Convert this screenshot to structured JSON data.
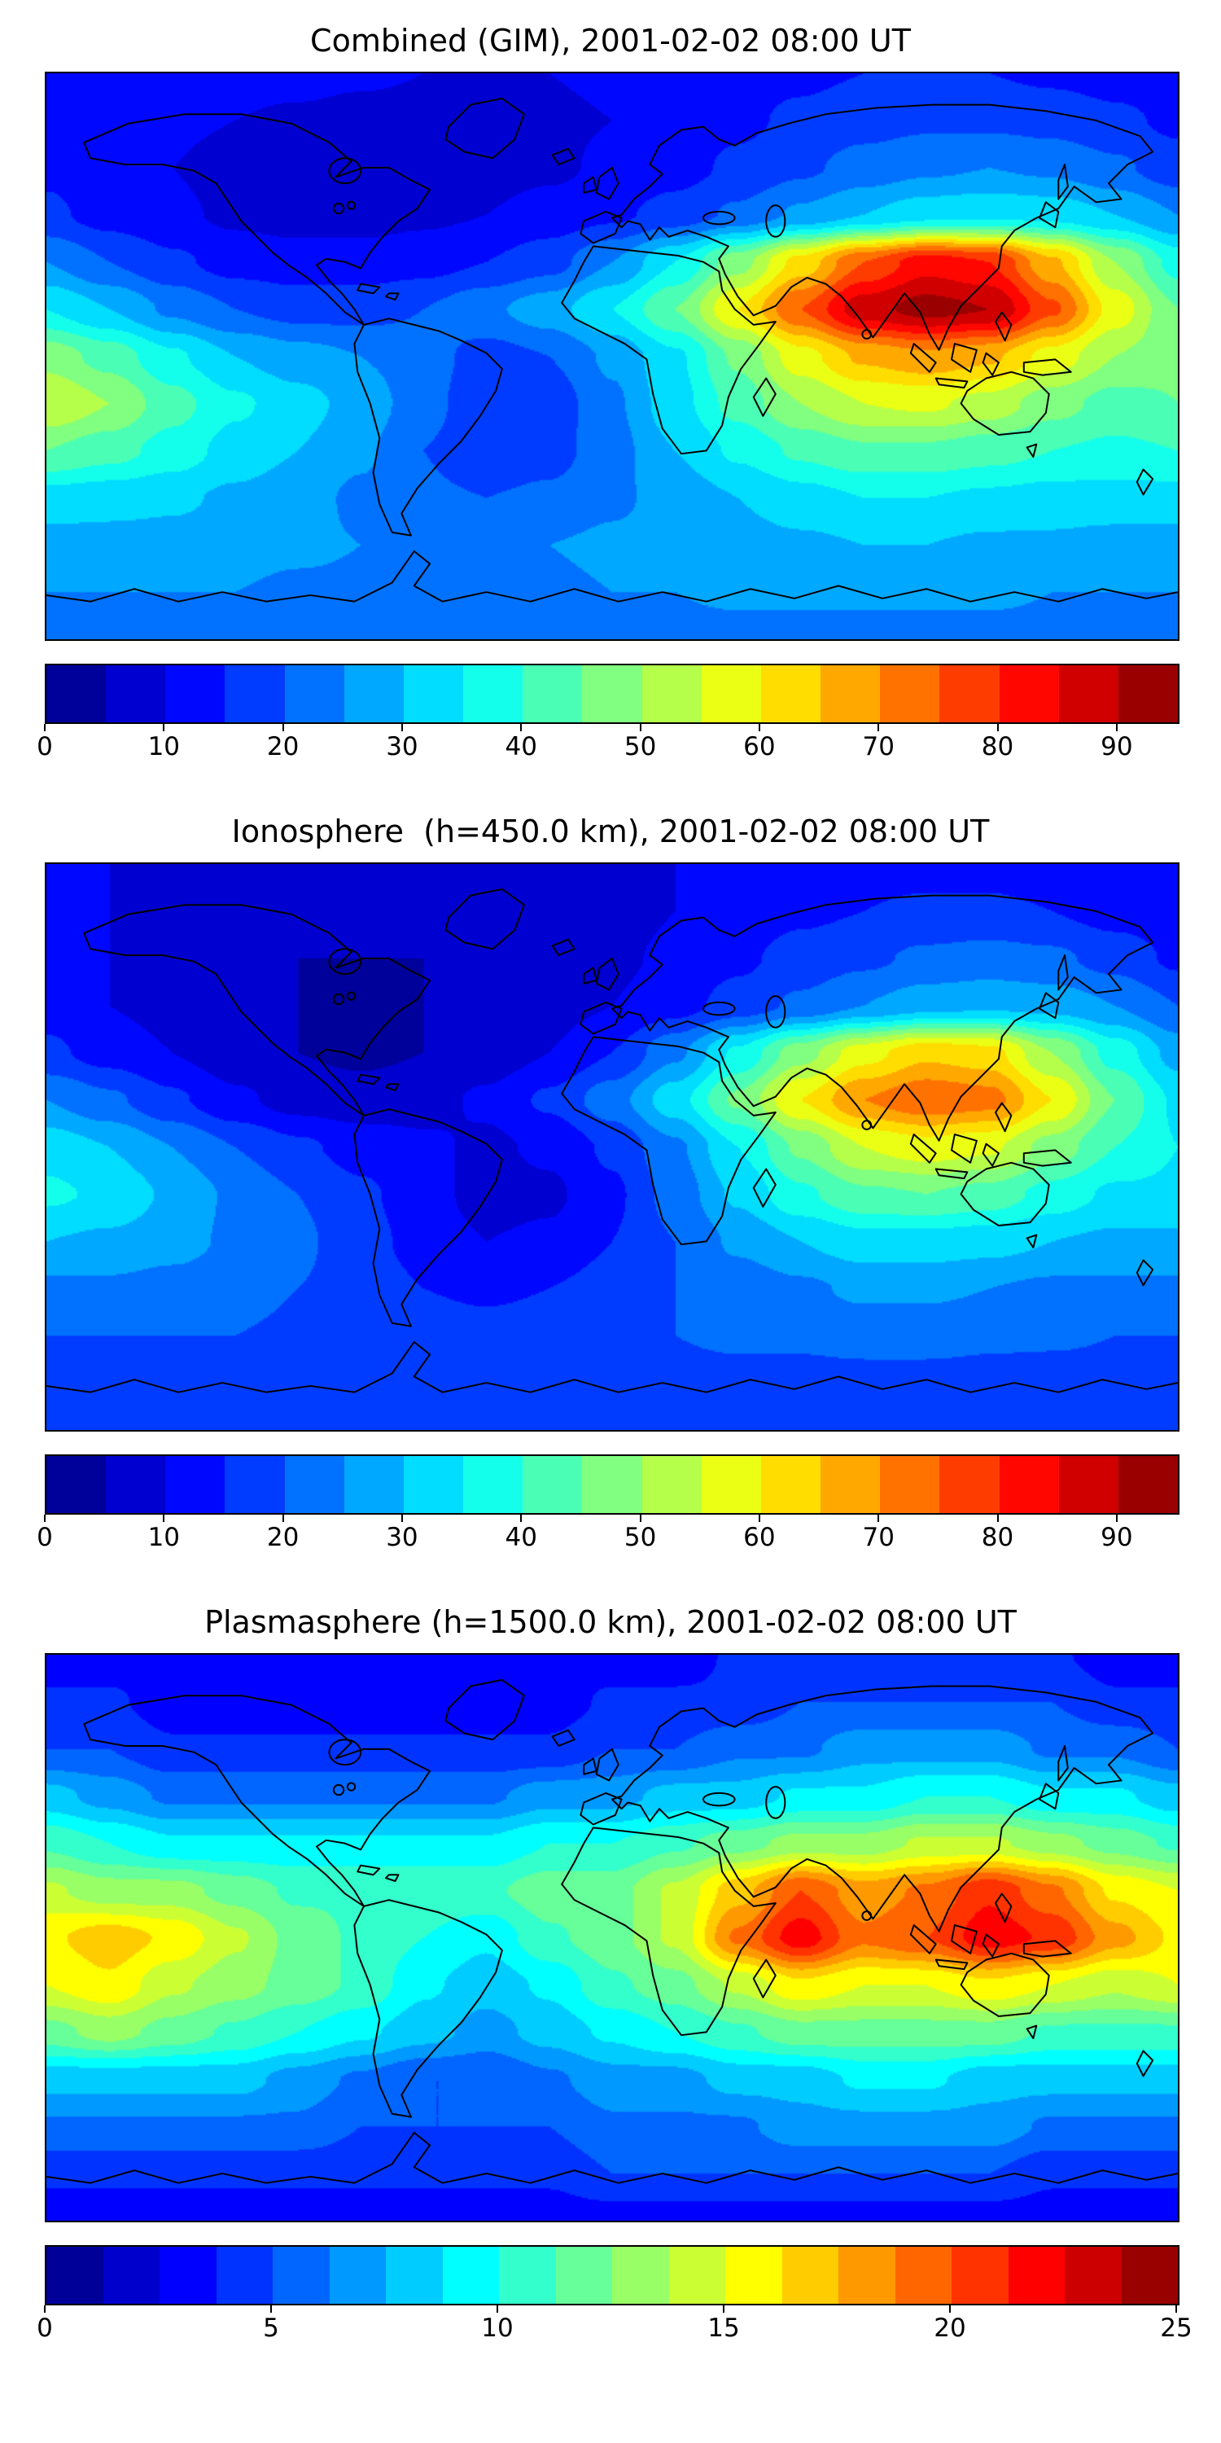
{
  "figure": {
    "background": "#ffffff",
    "colormap": "jet",
    "colormap_stops": [
      [
        0.0,
        "#00007f"
      ],
      [
        0.125,
        "#0000ff"
      ],
      [
        0.375,
        "#00ffff"
      ],
      [
        0.625,
        "#ffff00"
      ],
      [
        0.875,
        "#ff0000"
      ],
      [
        1.0,
        "#7f0000"
      ]
    ]
  },
  "chart_data": [
    {
      "type": "heatmap",
      "title": "Combined (GIM), 2001-02-02 08:00 UT",
      "xlabel": "",
      "ylabel": "",
      "projection": "equirectangular",
      "vmin": 0,
      "vmax": 95,
      "levels": 19,
      "colorbar_ticks": [
        0,
        10,
        20,
        30,
        40,
        50,
        60,
        70,
        80,
        90
      ],
      "lon": [
        -180,
        -160,
        -140,
        -120,
        -100,
        -80,
        -60,
        -40,
        -20,
        0,
        20,
        40,
        60,
        80,
        100,
        120,
        140,
        160,
        180
      ],
      "lat": [
        90,
        75,
        60,
        45,
        30,
        15,
        0,
        -15,
        -30,
        -45,
        -60,
        -75,
        -90
      ],
      "values": [
        [
          12,
          12,
          12,
          12,
          12,
          11,
          10,
          10,
          10,
          11,
          12,
          13,
          14,
          15,
          15,
          15,
          14,
          13,
          12
        ],
        [
          13,
          12,
          11,
          10,
          9,
          8,
          8,
          8,
          9,
          10,
          12,
          14,
          16,
          18,
          19,
          19,
          18,
          16,
          14
        ],
        [
          14,
          12,
          10,
          8,
          7,
          7,
          7,
          8,
          9,
          11,
          13,
          16,
          19,
          22,
          24,
          25,
          24,
          21,
          17
        ],
        [
          16,
          13,
          11,
          9,
          8,
          8,
          9,
          10,
          12,
          14,
          17,
          21,
          26,
          30,
          33,
          34,
          33,
          30,
          25
        ],
        [
          25,
          20,
          16,
          13,
          12,
          12,
          13,
          15,
          18,
          25,
          35,
          48,
          62,
          75,
          83,
          80,
          66,
          50,
          38
        ],
        [
          35,
          30,
          24,
          20,
          18,
          18,
          20,
          24,
          28,
          35,
          45,
          60,
          75,
          88,
          92,
          90,
          76,
          58,
          45
        ],
        [
          48,
          43,
          36,
          30,
          27,
          25,
          22,
          18,
          20,
          26,
          34,
          46,
          58,
          66,
          69,
          66,
          58,
          50,
          46
        ],
        [
          55,
          50,
          42,
          36,
          32,
          28,
          22,
          16,
          17,
          24,
          33,
          42,
          50,
          55,
          56,
          53,
          47,
          43,
          45
        ],
        [
          45,
          42,
          38,
          33,
          30,
          26,
          20,
          16,
          18,
          23,
          30,
          36,
          41,
          44,
          44,
          42,
          40,
          39,
          40
        ],
        [
          33,
          32,
          31,
          29,
          27,
          24,
          21,
          20,
          21,
          24,
          27,
          30,
          33,
          35,
          35,
          34,
          33,
          33,
          33
        ],
        [
          28,
          28,
          28,
          27,
          26,
          25,
          24,
          24,
          25,
          26,
          27,
          28,
          29,
          30,
          30,
          29,
          29,
          28,
          28
        ],
        [
          25,
          25,
          25,
          25,
          24,
          24,
          24,
          24,
          24,
          25,
          25,
          26,
          26,
          26,
          26,
          26,
          25,
          25,
          25
        ],
        [
          23,
          23,
          23,
          23,
          23,
          23,
          23,
          23,
          23,
          23,
          23,
          23,
          23,
          23,
          23,
          23,
          23,
          23,
          23
        ]
      ]
    },
    {
      "type": "heatmap",
      "title": "Ionosphere  (h=450.0 km), 2001-02-02 08:00 UT",
      "xlabel": "",
      "ylabel": "",
      "projection": "equirectangular",
      "vmin": 0,
      "vmax": 95,
      "levels": 19,
      "colorbar_ticks": [
        0,
        10,
        20,
        30,
        40,
        50,
        60,
        70,
        80,
        90
      ],
      "lon": [
        -180,
        -160,
        -140,
        -120,
        -100,
        -80,
        -60,
        -40,
        -20,
        0,
        20,
        40,
        60,
        80,
        100,
        120,
        140,
        160,
        180
      ],
      "lat": [
        90,
        75,
        60,
        45,
        30,
        15,
        0,
        -15,
        -30,
        -45,
        -60,
        -75,
        -90
      ],
      "values": [
        [
          10,
          10,
          9,
          9,
          8,
          8,
          7,
          7,
          8,
          9,
          10,
          11,
          12,
          13,
          13,
          13,
          12,
          11,
          10
        ],
        [
          11,
          10,
          9,
          8,
          7,
          6,
          6,
          6,
          7,
          8,
          10,
          12,
          14,
          15,
          16,
          16,
          15,
          13,
          12
        ],
        [
          12,
          10,
          8,
          6,
          5,
          5,
          5,
          6,
          7,
          9,
          11,
          14,
          17,
          19,
          21,
          22,
          21,
          18,
          14
        ],
        [
          13,
          10,
          8,
          6,
          5,
          4,
          5,
          6,
          8,
          10,
          13,
          17,
          21,
          25,
          28,
          29,
          28,
          25,
          20
        ],
        [
          16,
          13,
          10,
          7,
          5,
          4,
          5,
          7,
          10,
          15,
          24,
          36,
          48,
          58,
          64,
          62,
          50,
          38,
          28
        ],
        [
          25,
          21,
          16,
          11,
          8,
          7,
          8,
          11,
          16,
          23,
          33,
          46,
          60,
          70,
          74,
          72,
          60,
          45,
          34
        ],
        [
          33,
          30,
          25,
          20,
          16,
          13,
          11,
          9,
          11,
          16,
          24,
          35,
          46,
          55,
          58,
          56,
          48,
          40,
          35
        ],
        [
          36,
          34,
          29,
          24,
          20,
          16,
          12,
          8,
          9,
          14,
          22,
          31,
          39,
          44,
          45,
          43,
          38,
          34,
          34
        ],
        [
          30,
          29,
          27,
          24,
          21,
          17,
          13,
          10,
          11,
          15,
          20,
          26,
          30,
          33,
          33,
          32,
          30,
          29,
          29
        ],
        [
          24,
          24,
          23,
          22,
          20,
          18,
          15,
          14,
          15,
          17,
          20,
          22,
          24,
          26,
          26,
          25,
          24,
          24,
          24
        ],
        [
          20,
          20,
          20,
          20,
          19,
          18,
          18,
          17,
          18,
          19,
          20,
          21,
          21,
          22,
          22,
          21,
          21,
          20,
          20
        ],
        [
          17,
          17,
          17,
          17,
          17,
          17,
          17,
          17,
          17,
          17,
          18,
          18,
          18,
          18,
          18,
          18,
          17,
          17,
          17
        ],
        [
          16,
          16,
          16,
          16,
          16,
          16,
          16,
          16,
          16,
          16,
          16,
          16,
          16,
          16,
          16,
          16,
          16,
          16,
          16
        ]
      ]
    },
    {
      "type": "heatmap",
      "title": "Plasmasphere (h=1500.0 km), 2001-02-02 08:00 UT",
      "xlabel": "",
      "ylabel": "",
      "projection": "equirectangular",
      "vmin": 0,
      "vmax": 25,
      "levels": 20,
      "colorbar_ticks": [
        0,
        5,
        10,
        15,
        20,
        25
      ],
      "lon": [
        -180,
        -160,
        -140,
        -120,
        -100,
        -80,
        -60,
        -40,
        -20,
        0,
        20,
        40,
        60,
        80,
        100,
        120,
        140,
        160,
        180
      ],
      "lat": [
        90,
        75,
        60,
        45,
        30,
        15,
        0,
        -15,
        -30,
        -45,
        -60,
        -75,
        -90
      ],
      "values": [
        [
          3,
          3,
          3,
          3,
          3,
          3,
          3,
          3,
          3,
          3,
          3,
          4,
          4,
          4,
          4,
          4,
          4,
          3,
          3
        ],
        [
          4,
          4,
          3,
          3,
          3,
          3,
          3,
          3,
          3,
          4,
          4,
          4,
          5,
          5,
          5,
          5,
          5,
          4,
          4
        ],
        [
          5,
          5,
          4,
          4,
          4,
          4,
          4,
          4,
          4,
          5,
          5,
          6,
          6,
          7,
          7,
          7,
          6,
          6,
          5
        ],
        [
          8,
          7,
          6,
          6,
          6,
          6,
          6,
          6,
          7,
          7,
          8,
          8,
          9,
          9,
          10,
          10,
          9,
          9,
          8
        ],
        [
          11,
          10,
          9,
          9,
          9,
          9,
          9,
          9,
          10,
          10,
          11,
          12,
          13,
          13,
          14,
          14,
          13,
          12,
          11
        ],
        [
          14,
          13,
          13,
          12,
          11,
          11,
          11,
          11,
          12,
          12,
          14,
          17,
          20,
          18,
          19,
          21,
          19,
          16,
          15
        ],
        [
          16,
          17,
          16,
          14,
          12,
          11,
          10,
          9,
          11,
          12,
          14,
          19,
          22,
          19,
          20,
          22,
          21,
          18,
          16
        ],
        [
          15,
          16,
          14,
          13,
          12,
          11,
          9,
          8,
          9,
          11,
          12,
          14,
          16,
          15,
          15,
          16,
          15,
          14,
          15
        ],
        [
          12,
          13,
          12,
          11,
          10,
          9,
          8,
          7,
          8,
          9,
          10,
          11,
          12,
          12,
          12,
          12,
          11,
          11,
          11
        ],
        [
          8,
          8,
          8,
          8,
          7,
          6,
          5,
          5,
          6,
          7,
          7,
          8,
          8,
          9,
          9,
          8,
          8,
          8,
          8
        ],
        [
          6,
          6,
          6,
          6,
          6,
          5,
          5,
          5,
          5,
          6,
          6,
          6,
          7,
          7,
          7,
          7,
          6,
          6,
          6
        ],
        [
          4,
          4,
          4,
          4,
          4,
          4,
          4,
          4,
          4,
          5,
          5,
          5,
          5,
          5,
          5,
          5,
          4,
          4,
          4
        ],
        [
          3,
          3,
          3,
          3,
          3,
          3,
          3,
          3,
          3,
          3,
          3,
          3,
          3,
          3,
          3,
          3,
          3,
          3,
          3
        ]
      ]
    }
  ]
}
